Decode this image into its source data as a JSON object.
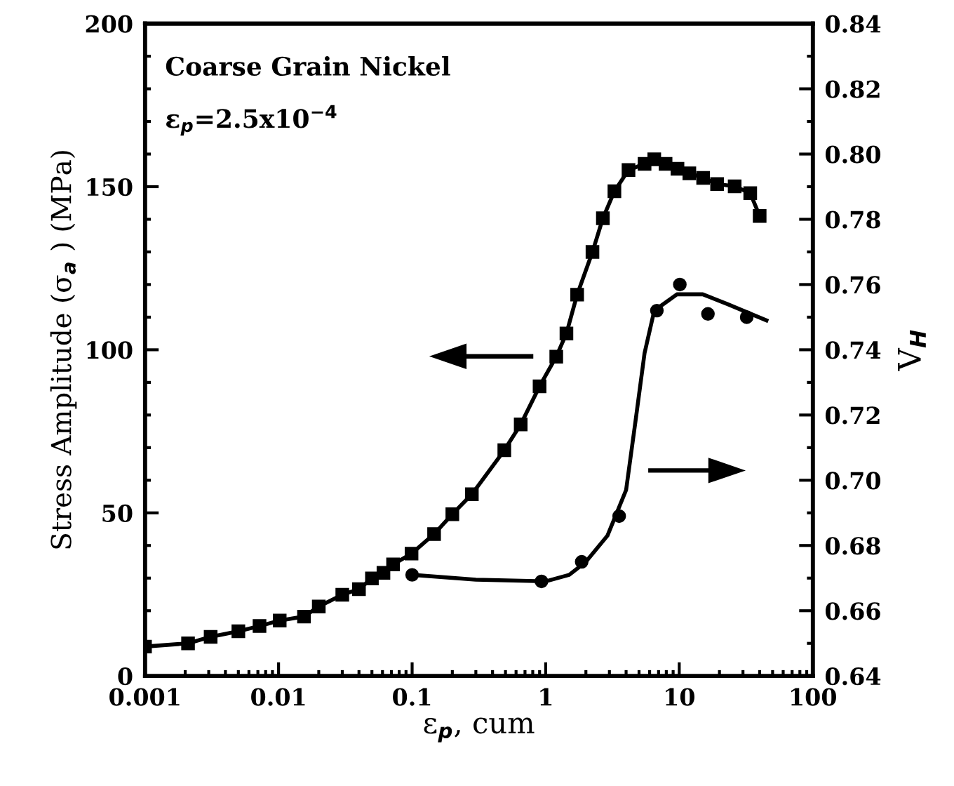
{
  "chart_data": {
    "type": "line",
    "xlabel": "ε$_{p}$, cum",
    "ylabel": "Stress Amplitude (σ$_{a}$ ) (MPa)",
    "y2label": "V$_{H}$",
    "annotations": [
      "Coarse Grain Nickel",
      "ε$_{p}$=2.5x10$^{−4}$"
    ],
    "log": "x",
    "xlim": [
      0.001,
      100
    ],
    "xticks": [
      0.001,
      0.01,
      0.1,
      1,
      10,
      100
    ],
    "ylim": [
      0,
      200
    ],
    "yticks": [
      0,
      50,
      100,
      150,
      200
    ],
    "y2lim": [
      0.64,
      0.84
    ],
    "y2ticks": [
      0.64,
      0.66,
      0.68,
      {
        "value": 0.7,
        "label": "0.70"
      },
      0.72,
      0.74,
      0.76,
      0.78,
      {
        "value": 0.8,
        "label": "0.80"
      },
      0.82,
      0.84
    ],
    "grid": false,
    "legend": false,
    "series": [
      {
        "marker": "square",
        "line_style": "solid",
        "color": "#000000",
        "x": [
          0.001,
          0.0021,
          0.0031,
          0.005,
          0.0072,
          0.0102,
          0.0155,
          0.02,
          0.03,
          0.04,
          0.05,
          0.061,
          0.072,
          0.099,
          0.146,
          0.2,
          0.28,
          0.49,
          0.65,
          0.9,
          1.2,
          1.43,
          1.72,
          2.24,
          2.68,
          3.27,
          4.17,
          5.5,
          6.5,
          7.9,
          9.7,
          11.9,
          15.1,
          19.2,
          26,
          34,
          40
        ],
        "values": [
          9,
          10,
          12,
          13.7,
          15.3,
          17,
          18.2,
          21.3,
          24.9,
          26.6,
          29.9,
          31.6,
          34.2,
          37.5,
          43.5,
          49.6,
          55.7,
          69.2,
          77.1,
          88.8,
          97.9,
          105,
          116.9,
          130,
          140.3,
          148.6,
          155.1,
          157,
          158.4,
          157,
          155.5,
          154.1,
          152.7,
          150.8,
          150.1,
          148,
          141
        ]
      },
      {
        "type": "scatter",
        "axis": "y2",
        "marker": "circle",
        "color": "#000000",
        "x": [
          0.1,
          0.93,
          1.86,
          3.55,
          6.8,
          10.1,
          16.4,
          32
        ],
        "values": [
          0.671,
          0.669,
          0.675,
          0.689,
          0.752,
          0.76,
          0.751,
          0.75
        ]
      },
      {
        "type": "line",
        "axis": "y2",
        "marker": "none",
        "line_style": "solid",
        "color": "#000000",
        "x": [
          0.1,
          0.3,
          1,
          1.5,
          2,
          2.9,
          4,
          4.7,
          5.5,
          6.5,
          9.6,
          15,
          23,
          45
        ],
        "values": [
          0.671,
          0.6695,
          0.669,
          0.671,
          0.675,
          0.683,
          0.697,
          0.718,
          0.739,
          0.752,
          0.757,
          0.757,
          0.754,
          0.749
        ]
      }
    ]
  }
}
